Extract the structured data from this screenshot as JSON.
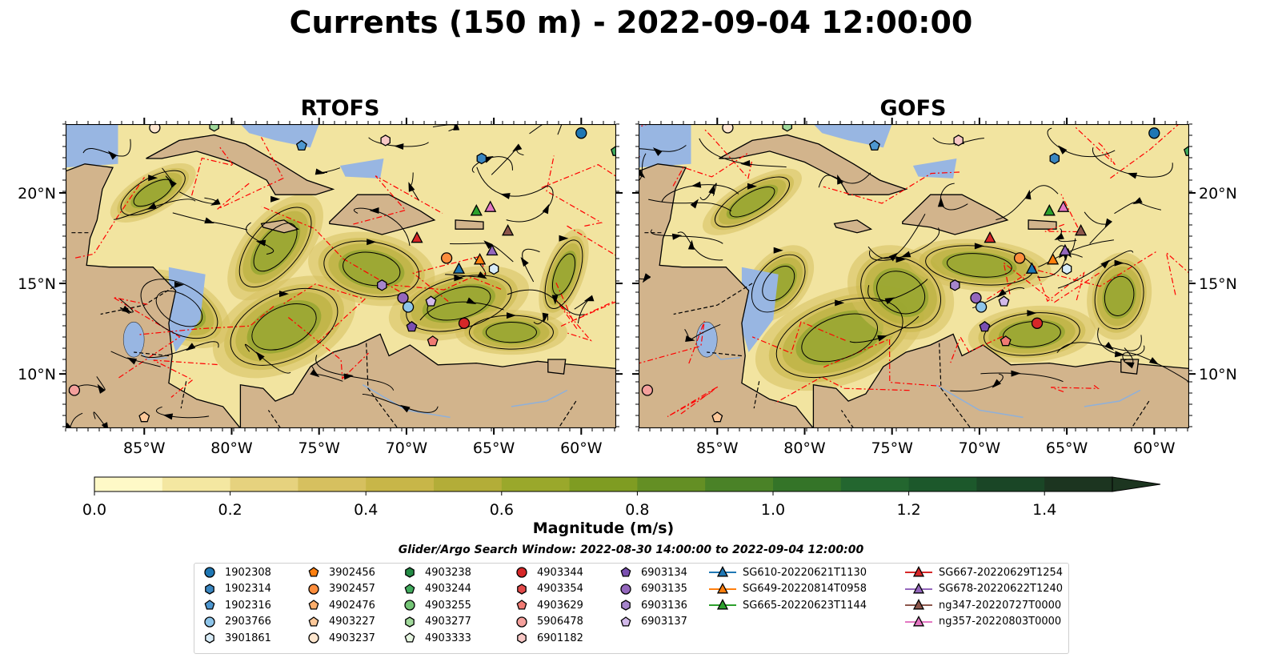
{
  "title": "Currents (150 m) - 2022-09-04 12:00:00",
  "panels": [
    {
      "title": "RTOFS"
    },
    {
      "title": "GOFS"
    }
  ],
  "map": {
    "lat_ticks": [
      "20°N",
      "15°N",
      "10°N"
    ],
    "lon_ticks": [
      "85°W",
      "80°W",
      "75°W",
      "70°W",
      "65°W",
      "60°W"
    ],
    "lat_values": [
      20,
      15,
      10
    ],
    "lon_values": [
      -85,
      -80,
      -75,
      -70,
      -65,
      -60
    ],
    "extent": {
      "lon_min": -89.5,
      "lon_max": -58.0,
      "lat_min": 7.0,
      "lat_max": 23.8
    },
    "colors": {
      "land": "#d2b48c",
      "shelf_water": "#98b6e2",
      "eez_lines": "#ff0000",
      "streamlines": "#000000"
    }
  },
  "colorbar": {
    "label": "Magnitude (m/s)",
    "ticks": [
      "0.0",
      "0.2",
      "0.4",
      "0.6",
      "0.8",
      "1.0",
      "1.2",
      "1.4"
    ],
    "tick_values": [
      0.0,
      0.2,
      0.4,
      0.6,
      0.8,
      1.0,
      1.2,
      1.4
    ],
    "min": 0.0,
    "max": 1.5,
    "extend": "max",
    "colors": [
      "#fef9c7",
      "#f4e7a1",
      "#e6d27e",
      "#d6c05f",
      "#c8b648",
      "#b3ad38",
      "#9aa82b",
      "#7f9c22",
      "#648f24",
      "#4a8227",
      "#347428",
      "#23662f",
      "#1c582b",
      "#1a4626",
      "#1c3520"
    ]
  },
  "search_window": "Glider/Argo Search Window: 2022-08-30 14:00:00 to 2022-09-04 12:00:00",
  "legend": [
    {
      "label": "1902308",
      "marker": "circle",
      "color": "#1f77b4"
    },
    {
      "label": "1902314",
      "marker": "hexagon",
      "color": "#3a86c0"
    },
    {
      "label": "1902316",
      "marker": "pentagon",
      "color": "#4e97d0"
    },
    {
      "label": "2903766",
      "marker": "circle",
      "color": "#8ec5ea"
    },
    {
      "label": "3901861",
      "marker": "hexagon",
      "color": "#d8ecf8"
    },
    {
      "label": "3902456",
      "marker": "pentagon",
      "color": "#ff7f0e"
    },
    {
      "label": "3902457",
      "marker": "circle",
      "color": "#fd8d3c"
    },
    {
      "label": "4902476",
      "marker": "pentagon",
      "color": "#fdae6b"
    },
    {
      "label": "4903227",
      "marker": "pentagon",
      "color": "#fdc99a"
    },
    {
      "label": "4903237",
      "marker": "circle",
      "color": "#fee6ce"
    },
    {
      "label": "4903238",
      "marker": "hexagon",
      "color": "#238b45"
    },
    {
      "label": "4903244",
      "marker": "pentagon",
      "color": "#41ab5d"
    },
    {
      "label": "4903255",
      "marker": "circle",
      "color": "#74c476"
    },
    {
      "label": "4903277",
      "marker": "hexagon",
      "color": "#a1d99b"
    },
    {
      "label": "4903333",
      "marker": "pentagon",
      "color": "#e5f5e0"
    },
    {
      "label": "4903344",
      "marker": "circle",
      "color": "#d62728"
    },
    {
      "label": "4903354",
      "marker": "hexagon",
      "color": "#e34a4a"
    },
    {
      "label": "4903629",
      "marker": "pentagon",
      "color": "#f07a73"
    },
    {
      "label": "5906478",
      "marker": "circle",
      "color": "#f4a09c"
    },
    {
      "label": "6901182",
      "marker": "hexagon",
      "color": "#f8c8c6"
    },
    {
      "label": "6903134",
      "marker": "pentagon",
      "color": "#7a4fb0"
    },
    {
      "label": "6903135",
      "marker": "circle",
      "color": "#9467bd"
    },
    {
      "label": "6903136",
      "marker": "hexagon",
      "color": "#a685cc"
    },
    {
      "label": "6903137",
      "marker": "pentagon",
      "color": "#d2b9ea"
    },
    {
      "label": "SG610-20220621T1130",
      "marker": "triangle-line",
      "color": "#1f77b4"
    },
    {
      "label": "SG649-20220814T0958",
      "marker": "triangle-line",
      "color": "#ff7f0e"
    },
    {
      "label": "SG665-20220623T1144",
      "marker": "triangle-line",
      "color": "#2ca02c"
    },
    {
      "label": "SG667-20220629T1254",
      "marker": "triangle-line",
      "color": "#d62728"
    },
    {
      "label": "SG678-20220622T1240",
      "marker": "triangle-line",
      "color": "#9467bd"
    },
    {
      "label": "ng347-20220727T0000",
      "marker": "triangle-line",
      "color": "#8c564b"
    },
    {
      "label": "ng357-20220803T0000",
      "marker": "triangle-line",
      "color": "#e377c2"
    }
  ],
  "observations": [
    {
      "id": "1902308",
      "lon": -60.0,
      "lat": 23.3
    },
    {
      "id": "1902314",
      "lon": -65.7,
      "lat": 21.9
    },
    {
      "id": "1902316",
      "lon": -76.0,
      "lat": 22.6
    },
    {
      "id": "2903766",
      "lon": -69.9,
      "lat": 13.7
    },
    {
      "id": "3901861",
      "lon": -65.0,
      "lat": 15.8
    },
    {
      "id": "3902457",
      "lon": -67.7,
      "lat": 16.4
    },
    {
      "id": "4903227",
      "lon": -85.0,
      "lat": 7.6
    },
    {
      "id": "4903237",
      "lon": -84.4,
      "lat": 23.6
    },
    {
      "id": "4903244",
      "lon": -58.0,
      "lat": 22.3
    },
    {
      "id": "4903277",
      "lon": -81.0,
      "lat": 23.7
    },
    {
      "id": "4903344",
      "lon": -66.7,
      "lat": 12.8
    },
    {
      "id": "4903629",
      "lon": -68.5,
      "lat": 11.8
    },
    {
      "id": "5906478",
      "lon": -89.0,
      "lat": 9.1
    },
    {
      "id": "6901182",
      "lon": -71.2,
      "lat": 22.9
    },
    {
      "id": "6903134",
      "lon": -69.7,
      "lat": 12.6
    },
    {
      "id": "6903135",
      "lon": -70.2,
      "lat": 14.2
    },
    {
      "id": "6903136",
      "lon": -71.4,
      "lat": 14.9
    },
    {
      "id": "6903137",
      "lon": -68.6,
      "lat": 14.0
    },
    {
      "id": "SG610-20220621T1130",
      "lon": -67.0,
      "lat": 15.8
    },
    {
      "id": "SG649-20220814T0958",
      "lon": -65.8,
      "lat": 16.3
    },
    {
      "id": "SG665-20220623T1144",
      "lon": -66.0,
      "lat": 19.0
    },
    {
      "id": "SG667-20220629T1254",
      "lon": -69.4,
      "lat": 17.5
    },
    {
      "id": "SG678-20220622T1240",
      "lon": -65.1,
      "lat": 16.8
    },
    {
      "id": "ng347-20220727T0000",
      "lon": -64.2,
      "lat": 17.9
    },
    {
      "id": "ng357-20220803T0000",
      "lon": -65.2,
      "lat": 19.2
    }
  ]
}
